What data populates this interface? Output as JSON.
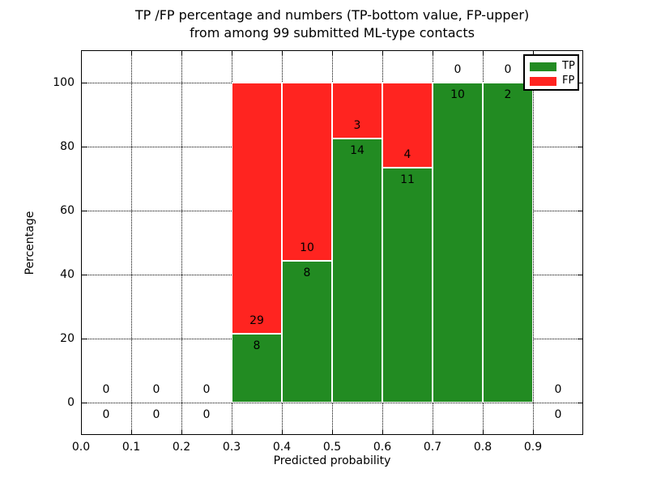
{
  "title": {
    "line1": "TP /FP percentage and numbers (TP-bottom value, FP-upper)",
    "line2": "from among 99 submitted ML-type contacts"
  },
  "axes": {
    "xlabel": "Predicted probability",
    "ylabel": "Percentage",
    "xlim": [
      0.0,
      1.0
    ],
    "ylim": [
      -10,
      110
    ],
    "xticks": [
      "0.0",
      "0.1",
      "0.2",
      "0.3",
      "0.4",
      "0.5",
      "0.6",
      "0.7",
      "0.8",
      "0.9"
    ],
    "xtick_values": [
      0.0,
      0.1,
      0.2,
      0.3,
      0.4,
      0.5,
      0.6,
      0.7,
      0.8,
      0.9
    ],
    "yticks": [
      "0",
      "20",
      "40",
      "60",
      "80",
      "100"
    ],
    "ytick_values": [
      0,
      20,
      40,
      60,
      80,
      100
    ],
    "grid": "dotted"
  },
  "legend": {
    "position": "upper-right",
    "items": [
      {
        "label": "TP",
        "color": "#228b22"
      },
      {
        "label": "FP",
        "color": "#ff2420"
      }
    ]
  },
  "chart_data": {
    "type": "bar",
    "stacked": true,
    "title": "TP /FP percentage and numbers (TP-bottom value, FP-upper) from among 99 submitted ML-type contacts",
    "xlabel": "Predicted probability",
    "ylabel": "Percentage",
    "total_contacts": 99,
    "bin_width": 0.1,
    "colors": {
      "tp": "#228b22",
      "fp": "#ff2420",
      "edge": "#ffffff"
    },
    "bins": [
      {
        "range": [
          0.0,
          0.1
        ],
        "tp": 0,
        "fp": 0,
        "tp_pct": 0,
        "fp_pct": 0
      },
      {
        "range": [
          0.1,
          0.2
        ],
        "tp": 0,
        "fp": 0,
        "tp_pct": 0,
        "fp_pct": 0
      },
      {
        "range": [
          0.2,
          0.3
        ],
        "tp": 0,
        "fp": 0,
        "tp_pct": 0,
        "fp_pct": 0
      },
      {
        "range": [
          0.3,
          0.4
        ],
        "tp": 8,
        "fp": 29,
        "tp_pct": 21.62,
        "fp_pct": 78.38
      },
      {
        "range": [
          0.4,
          0.5
        ],
        "tp": 8,
        "fp": 10,
        "tp_pct": 44.44,
        "fp_pct": 55.56
      },
      {
        "range": [
          0.5,
          0.6
        ],
        "tp": 14,
        "fp": 3,
        "tp_pct": 82.35,
        "fp_pct": 17.65
      },
      {
        "range": [
          0.6,
          0.7
        ],
        "tp": 11,
        "fp": 4,
        "tp_pct": 73.33,
        "fp_pct": 26.67
      },
      {
        "range": [
          0.7,
          0.8
        ],
        "tp": 10,
        "fp": 0,
        "tp_pct": 100,
        "fp_pct": 0
      },
      {
        "range": [
          0.8,
          0.9
        ],
        "tp": 2,
        "fp": 0,
        "tp_pct": 100,
        "fp_pct": 0
      },
      {
        "range": [
          0.9,
          1.0
        ],
        "tp": 0,
        "fp": 0,
        "tp_pct": 0,
        "fp_pct": 0
      }
    ]
  }
}
